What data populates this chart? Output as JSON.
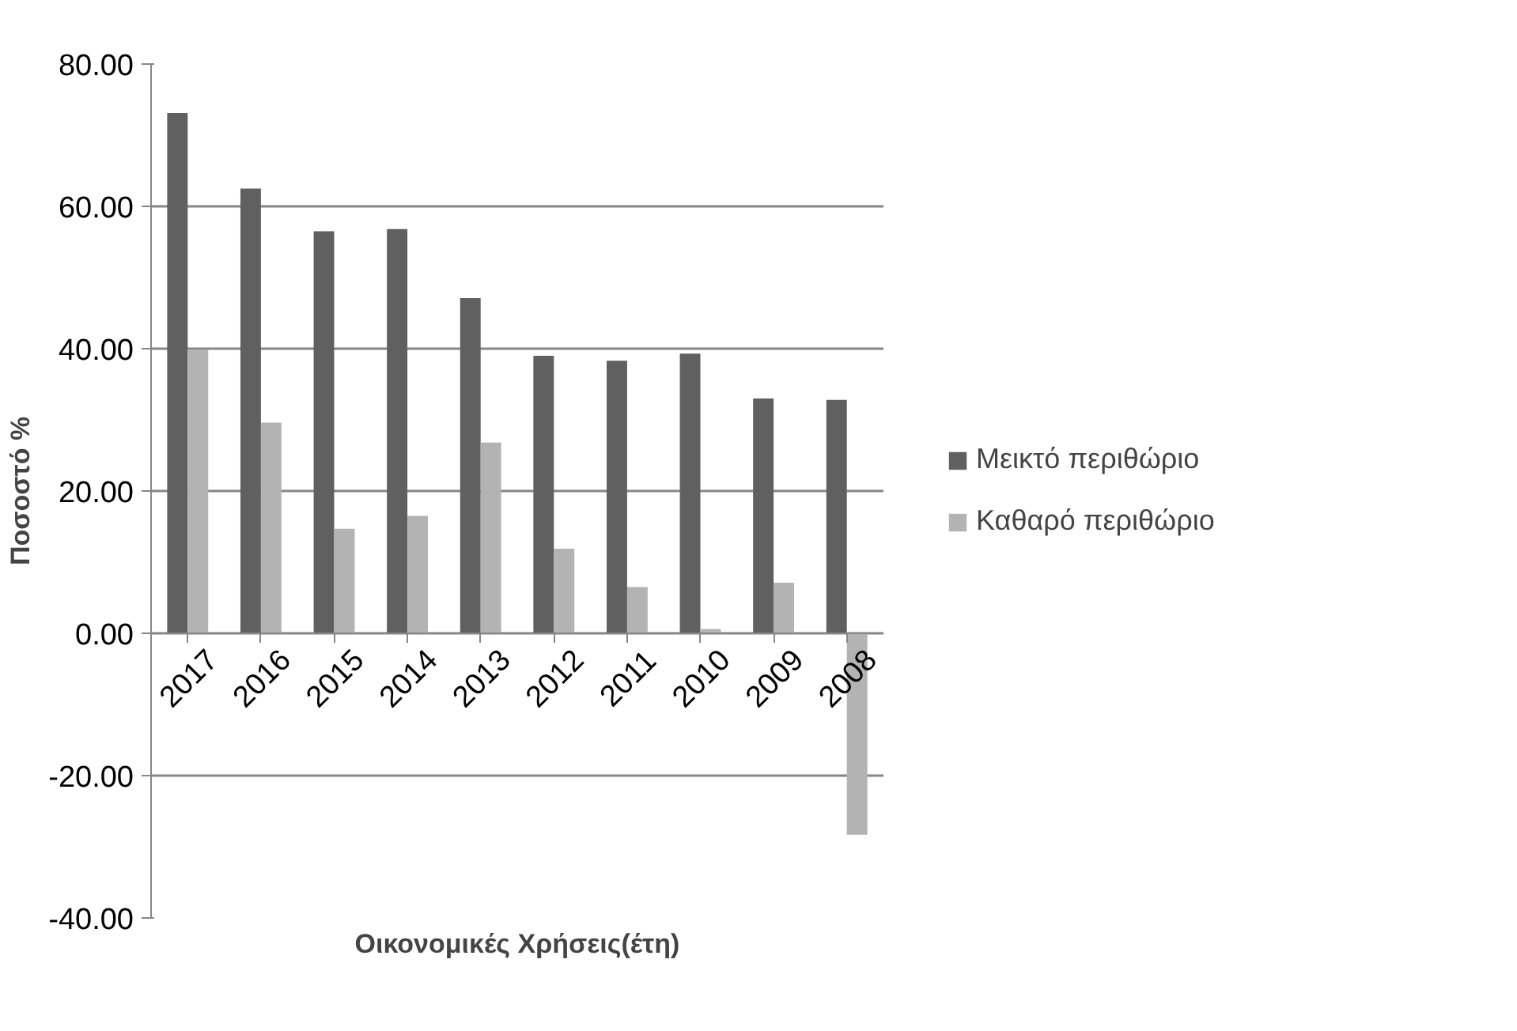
{
  "chart_data": {
    "type": "bar",
    "xlabel": "Οικονομικές Χρήσεις(έτη)",
    "ylabel": "Ποσοστό %",
    "categories": [
      "2017",
      "2016",
      "2015",
      "2014",
      "2013",
      "2012",
      "2011",
      "2010",
      "2009",
      "2008"
    ],
    "series": [
      {
        "name": "Μεικτό περιθώριο",
        "color": "#606060",
        "values": [
          73.1,
          62.5,
          56.5,
          56.8,
          47.1,
          39.0,
          38.3,
          39.3,
          33.0,
          32.8
        ]
      },
      {
        "name": "Καθαρό περιθώριο",
        "color": "#b3b3b3",
        "values": [
          39.9,
          29.6,
          14.7,
          16.5,
          26.8,
          11.9,
          6.5,
          0.6,
          7.1,
          -28.3
        ]
      }
    ],
    "ylim": [
      -40,
      80
    ],
    "yticks": [
      {
        "value": -40,
        "label": "-40.00"
      },
      {
        "value": -20,
        "label": "-20.00"
      },
      {
        "value": 0,
        "label": "0.00"
      },
      {
        "value": 20,
        "label": "20.00"
      },
      {
        "value": 40,
        "label": "40.00"
      },
      {
        "value": 60,
        "label": "60.00"
      },
      {
        "value": 80,
        "label": "80.00"
      }
    ],
    "grid": "y",
    "legend": "right"
  }
}
